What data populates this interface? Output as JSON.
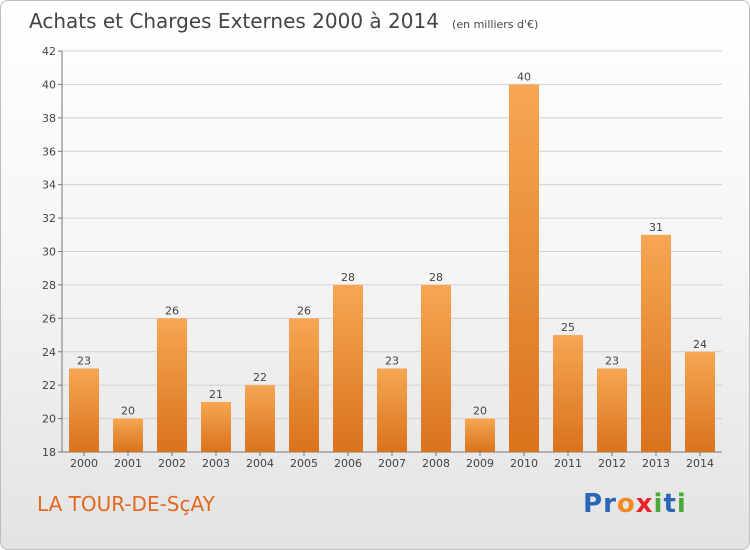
{
  "header": {
    "title": "Achats et Charges Externes 2000 à 2014",
    "subtitle": "(en milliers d'€)"
  },
  "footer": {
    "commune": "LA TOUR-DE-SçAY",
    "logo_text": "Proxiti"
  },
  "colors": {
    "bar_top": "#f6a654",
    "bar_bottom": "#d9731c",
    "commune": "#e3691f"
  },
  "chart_data": {
    "type": "bar",
    "title": "Achats et Charges Externes 2000 à 2014",
    "subtitle": "(en milliers d'€)",
    "categories": [
      "2000",
      "2001",
      "2002",
      "2003",
      "2004",
      "2005",
      "2006",
      "2007",
      "2008",
      "2009",
      "2010",
      "2011",
      "2012",
      "2013",
      "2014"
    ],
    "values": [
      23,
      20,
      26,
      21,
      22,
      26,
      28,
      23,
      28,
      20,
      40,
      25,
      23,
      31,
      24
    ],
    "ylim": [
      18,
      42
    ],
    "yticks": [
      18,
      20,
      22,
      24,
      26,
      28,
      30,
      32,
      34,
      36,
      38,
      40,
      42
    ],
    "grid": true,
    "xlabel": "",
    "ylabel": ""
  }
}
